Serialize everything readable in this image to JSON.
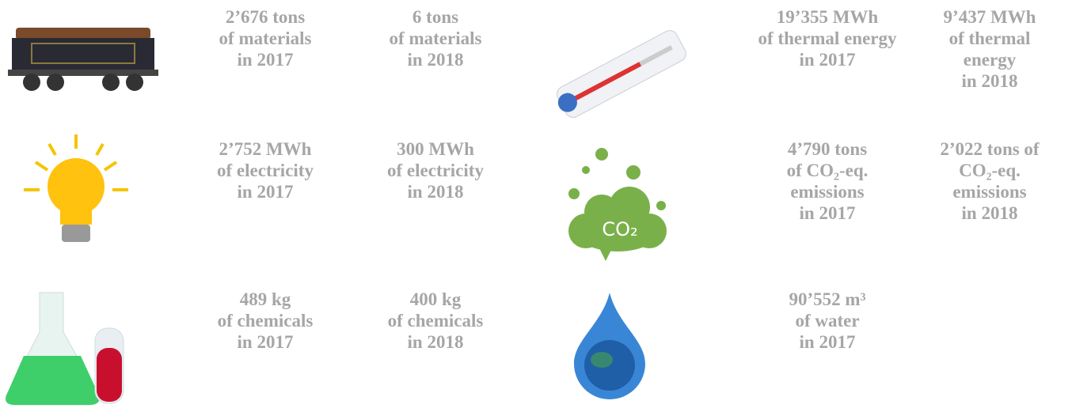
{
  "panels": [
    {
      "cells": [
        [
          "2’676 tons",
          "of materials",
          "in 2017"
        ],
        [
          "6 tons",
          "of materials",
          "in 2018"
        ]
      ]
    },
    {
      "cells": [
        [
          "19’355 MWh",
          "of thermal energy",
          "in 2017"
        ],
        [
          "9’437 MWh",
          "of thermal",
          "energy",
          "in 2018"
        ]
      ]
    },
    {
      "cells": [
        [
          "2’752 MWh",
          "of electricity",
          "in 2017"
        ],
        [
          "300 MWh",
          "of electricity",
          "in 2018"
        ]
      ]
    },
    {
      "icon_text": "CO₂",
      "cells": [
        [
          "4’790 tons",
          "of CO₂-eq.",
          "emissions",
          "in 2017"
        ],
        [
          "2’022 tons of",
          "CO₂-eq.",
          "emissions",
          "in 2018"
        ]
      ]
    },
    {
      "cells": [
        [
          "489 kg",
          "of chemicals",
          "in 2017"
        ],
        [
          "400 kg",
          "of chemicals",
          "in 2018"
        ]
      ]
    },
    {
      "cells": [
        [
          "90’552 m³",
          "of water",
          "in 2017"
        ]
      ]
    }
  ]
}
